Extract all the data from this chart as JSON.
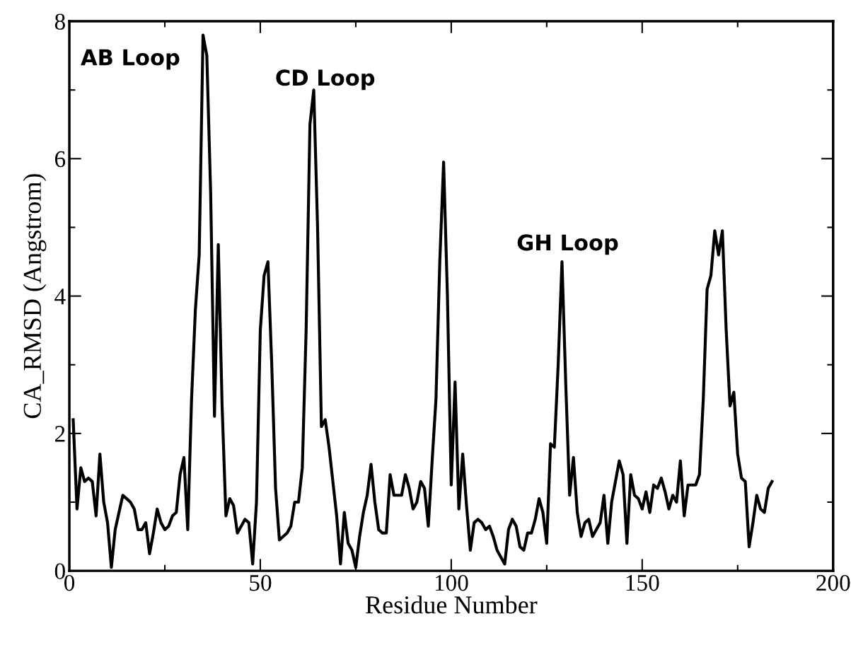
{
  "chart_data": {
    "type": "line",
    "xlabel": "Residue Number",
    "ylabel": "CA_RMSD (Angstrom)",
    "xlim": [
      0,
      200
    ],
    "xticks": [
      0,
      50,
      100,
      150,
      200
    ],
    "ylim": [
      0,
      8
    ],
    "yticks": [
      0,
      2,
      4,
      6,
      8
    ],
    "grid": false,
    "marker": "none",
    "line_style": "solid",
    "annotations": [
      "AB Loop",
      "CD Loop",
      "GH Loop"
    ],
    "x": [
      1,
      2,
      3,
      4,
      5,
      6,
      7,
      8,
      9,
      10,
      11,
      12,
      13,
      14,
      15,
      16,
      17,
      18,
      19,
      20,
      21,
      22,
      23,
      24,
      25,
      26,
      27,
      28,
      29,
      30,
      31,
      32,
      33,
      34,
      35,
      36,
      37,
      38,
      39,
      40,
      41,
      42,
      43,
      44,
      45,
      46,
      47,
      48,
      49,
      50,
      51,
      52,
      53,
      54,
      55,
      56,
      57,
      58,
      59,
      60,
      61,
      62,
      63,
      64,
      65,
      66,
      67,
      68,
      69,
      70,
      71,
      72,
      73,
      74,
      75,
      76,
      77,
      78,
      79,
      80,
      81,
      82,
      83,
      84,
      85,
      86,
      87,
      88,
      89,
      90,
      91,
      92,
      93,
      94,
      95,
      96,
      97,
      98,
      99,
      100,
      101,
      102,
      103,
      104,
      105,
      106,
      107,
      108,
      109,
      110,
      111,
      112,
      113,
      114,
      115,
      116,
      117,
      118,
      119,
      120,
      121,
      122,
      123,
      124,
      125,
      126,
      127,
      128,
      129,
      130,
      131,
      132,
      133,
      134,
      135,
      136,
      137,
      138,
      139,
      140,
      141,
      142,
      143,
      144,
      145,
      146,
      147,
      148,
      149,
      150,
      151,
      152,
      153,
      154,
      155,
      156,
      157,
      158,
      159,
      160,
      161,
      162,
      163,
      164,
      165,
      166,
      167,
      168,
      169,
      170,
      171,
      172,
      173,
      174,
      175,
      176,
      177,
      178,
      179,
      180,
      181,
      182,
      183,
      184
    ],
    "series": [
      {
        "color": "#000000",
        "values": [
          2.2,
          0.9,
          1.5,
          1.3,
          1.35,
          1.3,
          0.8,
          1.7,
          1.0,
          0.7,
          0.05,
          0.6,
          0.85,
          1.1,
          1.05,
          1.0,
          0.9,
          0.6,
          0.6,
          0.7,
          0.25,
          0.55,
          0.9,
          0.7,
          0.6,
          0.65,
          0.8,
          0.85,
          1.4,
          1.65,
          0.6,
          2.5,
          3.8,
          4.6,
          7.8,
          7.5,
          5.5,
          2.25,
          4.75,
          2.4,
          0.8,
          1.05,
          0.95,
          0.55,
          0.65,
          0.75,
          0.7,
          0.1,
          1.0,
          3.5,
          4.3,
          4.5,
          3.0,
          1.2,
          0.45,
          0.5,
          0.55,
          0.65,
          1.0,
          1.0,
          1.5,
          3.5,
          6.5,
          7.0,
          5.0,
          2.1,
          2.2,
          1.8,
          1.3,
          0.8,
          0.1,
          0.85,
          0.4,
          0.3,
          0.05,
          0.5,
          0.85,
          1.1,
          1.55,
          1.0,
          0.6,
          0.55,
          0.55,
          1.4,
          1.1,
          1.1,
          1.1,
          1.4,
          1.2,
          0.9,
          1.0,
          1.3,
          1.2,
          0.65,
          1.6,
          2.5,
          4.5,
          5.95,
          4.0,
          1.25,
          2.75,
          0.9,
          1.7,
          0.95,
          0.3,
          0.7,
          0.75,
          0.7,
          0.6,
          0.65,
          0.5,
          0.3,
          0.2,
          0.1,
          0.6,
          0.75,
          0.65,
          0.35,
          0.3,
          0.55,
          0.55,
          0.75,
          1.05,
          0.85,
          0.4,
          1.85,
          1.8,
          3.0,
          4.5,
          2.7,
          1.1,
          1.65,
          0.85,
          0.5,
          0.7,
          0.75,
          0.5,
          0.6,
          0.7,
          1.1,
          0.4,
          1.0,
          1.3,
          1.6,
          1.4,
          0.4,
          1.4,
          1.1,
          1.05,
          0.9,
          1.15,
          0.85,
          1.25,
          1.2,
          1.35,
          1.15,
          0.9,
          1.1,
          1.0,
          1.6,
          0.8,
          1.25,
          1.25,
          1.25,
          1.4,
          2.5,
          4.1,
          4.3,
          4.95,
          4.6,
          4.95,
          3.5,
          2.4,
          2.6,
          1.7,
          1.35,
          1.3,
          0.35,
          0.7,
          1.1,
          0.9,
          0.85,
          1.2,
          1.3
        ]
      }
    ]
  }
}
